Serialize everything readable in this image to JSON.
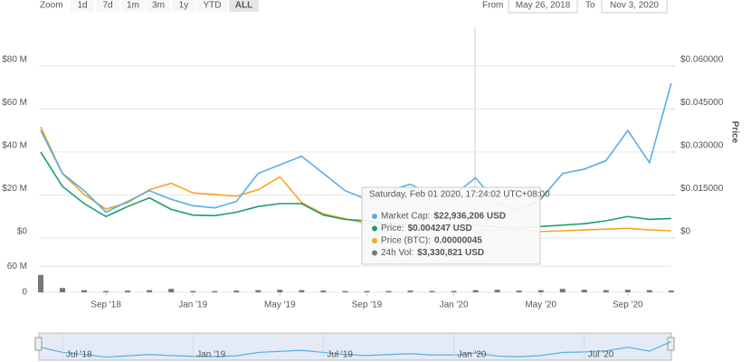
{
  "controls": {
    "zoom_label": "Zoom",
    "buttons": [
      "1d",
      "7d",
      "1m",
      "3m",
      "1y",
      "YTD",
      "ALL"
    ],
    "selected": "ALL",
    "from_label": "From",
    "from": "May 26, 2018",
    "to_label": "To",
    "to": "Nov 3, 2020"
  },
  "chart_data": {
    "type": "line",
    "categories": [
      null,
      null,
      null,
      "Sep '18",
      null,
      null,
      null,
      "Jan '19",
      null,
      null,
      null,
      "May '19",
      null,
      null,
      null,
      "Sep '19",
      null,
      null,
      null,
      "Jan '20",
      null,
      null,
      null,
      "May '20",
      null,
      null,
      null,
      "Sep '20",
      null,
      null
    ],
    "series": [
      {
        "color": "#5aaee3",
        "axis": "y",
        "values": [
          50000000,
          30000000,
          22000000,
          12000000,
          17000000,
          22000000,
          18000000,
          15000000,
          14000000,
          17000000,
          30000000,
          34000000,
          38000000,
          30000000,
          22000000,
          18000000,
          22000000,
          25000000,
          20000000,
          20000000,
          28000000,
          16000000,
          13000000,
          18000000,
          30000000,
          32000000,
          36000000,
          50000000,
          35000000,
          72000000
        ]
      },
      {
        "color": "#1a9e6e",
        "axis": "y2",
        "values": [
          0.03,
          0.018,
          0.012,
          0.0075,
          0.011,
          0.014,
          0.01,
          0.008,
          0.0078,
          0.009,
          0.011,
          0.012,
          0.012,
          0.008,
          0.0065,
          0.006,
          0.005,
          0.0045,
          0.0042,
          0.0042,
          0.0045,
          0.0038,
          0.0035,
          0.004,
          0.0045,
          0.005,
          0.006,
          0.0075,
          0.0065,
          0.0068
        ]
      },
      {
        "color": "#f5a623",
        "axis": "y3",
        "values": [
          6.9e-06,
          4e-06,
          2.7e-06,
          1.8e-06,
          2.2e-06,
          3e-06,
          3.4e-06,
          2.8e-06,
          2.7e-06,
          2.6e-06,
          3e-06,
          3.8e-06,
          2.2e-06,
          1.5e-06,
          1.2e-06,
          9e-07,
          8e-07,
          6e-07,
          5.5e-07,
          5e-07,
          4.5e-07,
          5e-07,
          5e-07,
          4e-07,
          4.5e-07,
          5e-07,
          5.5e-07,
          6e-07,
          5e-07,
          4.5e-07
        ]
      }
    ],
    "ylim": [
      0,
      98000000
    ],
    "yticks": [
      {
        "value": 0,
        "label": "$0"
      },
      {
        "value": 20000000,
        "label": "$20 M"
      },
      {
        "value": 40000000,
        "label": "$40 M"
      },
      {
        "value": 60000000,
        "label": "$60 M"
      },
      {
        "value": 80000000,
        "label": "$80 M"
      }
    ],
    "y2lim": [
      0,
      0.0736
    ],
    "y2ticks": [
      {
        "value": 0,
        "label": "$0"
      },
      {
        "value": 0.015,
        "label": "$0.015000"
      },
      {
        "value": 0.03,
        "label": "$0.030000"
      },
      {
        "value": 0.045,
        "label": "$0.045000"
      },
      {
        "value": 0.06,
        "label": "$0.060000"
      }
    ],
    "y2_label": "Price",
    "y3lim": [
      0,
      1.31e-05
    ],
    "grid": true,
    "volume": {
      "color": "#777777",
      "values": [
        40000000,
        10000000,
        5000000,
        3000000,
        4000000,
        5000000,
        8000000,
        3000000,
        3000000,
        4000000,
        5000000,
        6000000,
        5000000,
        4000000,
        3000000,
        3000000,
        3000000,
        4000000,
        3000000,
        3000000,
        5000000,
        6000000,
        4000000,
        5000000,
        8000000,
        6000000,
        5000000,
        6000000,
        5000000,
        4000000
      ],
      "ylim": [
        0,
        100000000
      ],
      "yticks": [
        {
          "value": 0,
          "label": "0"
        },
        {
          "value": 60000000,
          "label": "60 M"
        }
      ]
    },
    "navigator": {
      "categories": [
        null,
        "Jul '18",
        null,
        null,
        null,
        null,
        null,
        "Jan '19",
        null,
        null,
        null,
        null,
        null,
        "Jul '19",
        null,
        null,
        null,
        null,
        null,
        "Jan '20",
        null,
        null,
        null,
        null,
        null,
        "Jul '20",
        null,
        null,
        null,
        null
      ]
    },
    "tooltip": {
      "date": "Saturday, Feb 01 2020, 17:24:02 UTC+08:00",
      "rows": [
        {
          "label": "Market Cap:",
          "value": "$22,936,206 USD"
        },
        {
          "label": "Price:",
          "value": "$0.004247 USD"
        },
        {
          "label": "Price (BTC):",
          "value": "0.00000045"
        },
        {
          "label": "24h Vol:",
          "value": "$3,330,821 USD"
        }
      ]
    }
  }
}
